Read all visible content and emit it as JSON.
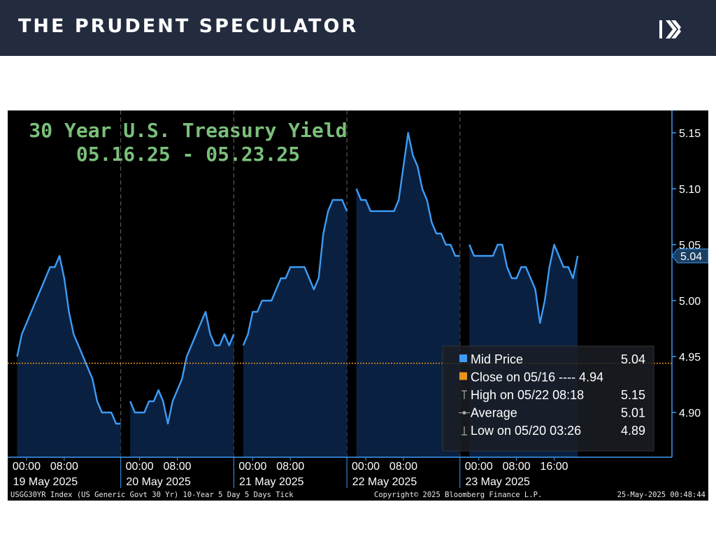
{
  "header": {
    "brand": "THE PRUDENT SPECULATOR",
    "logo_icon": "k-chevron-logo-icon"
  },
  "colors": {
    "header_bg": "#232b3e",
    "line": "#3d9cf5",
    "fill": "#0a2040",
    "close_line": "#e8941e",
    "title": "#7bbf7b",
    "axis": "#3d9cf5"
  },
  "chart_data": {
    "type": "area",
    "title": "30 Year U.S. Treasury Yield",
    "subtitle": "05.16.25 - 05.23.25",
    "ylim": [
      4.86,
      5.17
    ],
    "yticks": [
      "5.15",
      "5.10",
      "5.05",
      "5.00",
      "4.95",
      "4.90"
    ],
    "current_value_label": "5.04",
    "x_hours_range": [
      -4,
      137
    ],
    "days": [
      {
        "label": "19 May 2025",
        "ticks": [
          "00:00",
          "08:00"
        ],
        "tick_hours": [
          0,
          8
        ]
      },
      {
        "label": "20 May 2025",
        "ticks": [
          "00:00",
          "08:00"
        ],
        "tick_hours": [
          24,
          32
        ]
      },
      {
        "label": "21 May 2025",
        "ticks": [
          "00:00",
          "08:00"
        ],
        "tick_hours": [
          48,
          56
        ]
      },
      {
        "label": "22 May 2025",
        "ticks": [
          "00:00",
          "08:00"
        ],
        "tick_hours": [
          72,
          80
        ]
      },
      {
        "label": "23 May 2025",
        "ticks": [
          "00:00",
          "08:00",
          "16:00"
        ],
        "tick_hours": [
          96,
          104,
          112
        ]
      }
    ],
    "day_boundary_hours": [
      20,
      44,
      68,
      92
    ],
    "close_reference": 4.944,
    "segments": [
      {
        "name": "19 May",
        "x": [
          -2,
          -1,
          0,
          1,
          2,
          3,
          4,
          5,
          6,
          7,
          8,
          9,
          10,
          11,
          12,
          13,
          14,
          15,
          16,
          17,
          18,
          19,
          20
        ],
        "y": [
          4.95,
          4.97,
          4.98,
          4.99,
          5.0,
          5.01,
          5.02,
          5.03,
          5.03,
          5.04,
          5.02,
          4.99,
          4.97,
          4.96,
          4.95,
          4.94,
          4.93,
          4.91,
          4.9,
          4.9,
          4.9,
          4.89,
          4.89
        ]
      },
      {
        "name": "20 May",
        "x": [
          22,
          23,
          24,
          25,
          26,
          27,
          28,
          29,
          30,
          31,
          32,
          33,
          34,
          35,
          36,
          37,
          38,
          39,
          40,
          41,
          42,
          43,
          44
        ],
        "y": [
          4.91,
          4.9,
          4.9,
          4.9,
          4.91,
          4.91,
          4.92,
          4.91,
          4.89,
          4.91,
          4.92,
          4.93,
          4.95,
          4.96,
          4.97,
          4.98,
          4.99,
          4.97,
          4.96,
          4.96,
          4.97,
          4.96,
          4.97
        ]
      },
      {
        "name": "21 May",
        "x": [
          46,
          47,
          48,
          49,
          50,
          51,
          52,
          53,
          54,
          55,
          56,
          57,
          58,
          59,
          60,
          61,
          62,
          63,
          64,
          65,
          66,
          67,
          68
        ],
        "y": [
          4.96,
          4.97,
          4.99,
          4.99,
          5.0,
          5.0,
          5.0,
          5.01,
          5.02,
          5.02,
          5.03,
          5.03,
          5.03,
          5.03,
          5.02,
          5.01,
          5.02,
          5.06,
          5.08,
          5.09,
          5.09,
          5.09,
          5.08
        ]
      },
      {
        "name": "22 May",
        "x": [
          70,
          71,
          72,
          73,
          74,
          75,
          76,
          77,
          78,
          79,
          80,
          81,
          82,
          83,
          84,
          85,
          86,
          87,
          88,
          89,
          90,
          91,
          92
        ],
        "y": [
          5.1,
          5.09,
          5.09,
          5.08,
          5.08,
          5.08,
          5.08,
          5.08,
          5.08,
          5.09,
          5.12,
          5.15,
          5.13,
          5.12,
          5.1,
          5.09,
          5.07,
          5.06,
          5.06,
          5.05,
          5.05,
          5.04,
          5.04
        ]
      },
      {
        "name": "23 May",
        "x": [
          94,
          95,
          96,
          97,
          98,
          99,
          100,
          101,
          102,
          103,
          104,
          105,
          106,
          107,
          108,
          109,
          110,
          111,
          112,
          113,
          114,
          115,
          116,
          117
        ],
        "y": [
          5.05,
          5.04,
          5.04,
          5.04,
          5.04,
          5.04,
          5.05,
          5.05,
          5.03,
          5.02,
          5.02,
          5.03,
          5.03,
          5.02,
          5.01,
          4.98,
          5.0,
          5.03,
          5.05,
          5.04,
          5.03,
          5.03,
          5.02,
          5.04
        ]
      }
    ],
    "legend": [
      {
        "label": "Mid Price",
        "value": "5.04",
        "marker": "blue-square"
      },
      {
        "label": "Close on 05/16 ---- 4.94",
        "value": "",
        "marker": "orange-square"
      },
      {
        "label": "High on 05/22 08:18",
        "value": "5.15",
        "marker": "high-tick"
      },
      {
        "label": "Average",
        "value": "5.01",
        "marker": "average-dot"
      },
      {
        "label": "Low on 05/20 03:26",
        "value": "4.89",
        "marker": "low-tick"
      }
    ],
    "footer": {
      "source": "USGG30YR Index (US Generic Govt 30 Yr) 10-Year 5 Day 5 Days  Tick",
      "copyright": "Copyright© 2025 Bloomberg Finance L.P.",
      "timestamp": "25-May-2025 00:48:44"
    }
  }
}
